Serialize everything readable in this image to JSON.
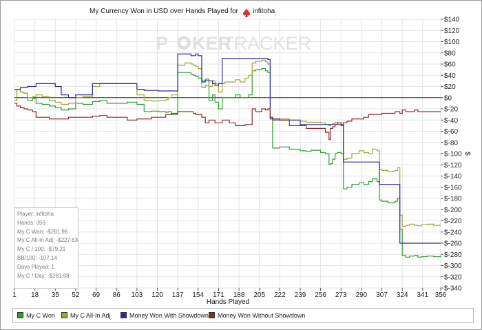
{
  "chart_data": {
    "type": "line",
    "title": "My Currency Won in USD over Hands Played for",
    "player_name": "infitoha",
    "watermark": {
      "left": "P",
      "right": "KER",
      "brand2": "TRACKER"
    },
    "xlabel": "Hands Played",
    "ylabel": "$",
    "xlim": [
      1,
      356
    ],
    "ylim": [
      -340,
      140
    ],
    "x_ticks": [
      "1",
      "18",
      "35",
      "52",
      "69",
      "86",
      "103",
      "120",
      "137",
      "154",
      "171",
      "188",
      "205",
      "222",
      "239",
      "256",
      "273",
      "290",
      "307",
      "324",
      "341",
      "356"
    ],
    "y_ticks": [
      "$140",
      "$120",
      "$100",
      "$80",
      "$60",
      "$40",
      "$20",
      "$0",
      "$-20",
      "$-40",
      "$-60",
      "$-80",
      "$-100",
      "$-120",
      "$-140",
      "$-160",
      "$-180",
      "$-200",
      "$-220",
      "$-240",
      "$-260",
      "$-280",
      "$-300",
      "$-320",
      "$-340"
    ],
    "grid": true,
    "legend_position": "bottom",
    "series": [
      {
        "name": "My C Won",
        "color": "#2e9e2e",
        "x": [
          1,
          3,
          6,
          9,
          12,
          16,
          19,
          24,
          30,
          35,
          40,
          46,
          52,
          58,
          66,
          72,
          78,
          86,
          95,
          103,
          109,
          115,
          121,
          127,
          129,
          132,
          137,
          143,
          148,
          150,
          152,
          154,
          157,
          160,
          163,
          166,
          168,
          171,
          174,
          176,
          180,
          185,
          189,
          193,
          196,
          199,
          202,
          207,
          210,
          212,
          214,
          216,
          222,
          230,
          239,
          244,
          248,
          256,
          260,
          263,
          264,
          266,
          268,
          270,
          273,
          275,
          278,
          282,
          288,
          292,
          296,
          299,
          303,
          305,
          307,
          312,
          318,
          320,
          322,
          324,
          327,
          330,
          334,
          337,
          340,
          345,
          350,
          356
        ],
        "values": [
          -5,
          15,
          10,
          8,
          -5,
          -2,
          -10,
          -12,
          -15,
          -18,
          -22,
          -20,
          -10,
          -12,
          -7,
          -5,
          -10,
          -10,
          -8,
          -12,
          -25,
          -24,
          -25,
          -26,
          -25,
          -30,
          45,
          45,
          42,
          40,
          38,
          35,
          30,
          33,
          -5,
          5,
          -8,
          -20,
          0,
          0,
          0,
          5,
          0,
          0,
          5,
          48,
          50,
          52,
          48,
          45,
          -35,
          -90,
          -88,
          -92,
          -95,
          -96,
          -94,
          -98,
          -100,
          -120,
          -118,
          -110,
          -100,
          -98,
          -100,
          -163,
          -160,
          -155,
          -152,
          -155,
          -150,
          -145,
          -150,
          -183,
          -185,
          -188,
          -185,
          -180,
          -235,
          -282,
          -285,
          -283,
          -282,
          -285,
          -284,
          -283,
          -284,
          -282
        ]
      },
      {
        "name": "My C All-In Adj",
        "color": "#9aaa2e",
        "x": [
          1,
          3,
          6,
          9,
          12,
          16,
          19,
          24,
          30,
          35,
          40,
          46,
          52,
          58,
          66,
          72,
          78,
          86,
          95,
          103,
          109,
          115,
          121,
          127,
          129,
          132,
          137,
          143,
          148,
          150,
          152,
          154,
          157,
          160,
          163,
          166,
          168,
          171,
          174,
          176,
          180,
          185,
          189,
          193,
          196,
          199,
          202,
          207,
          210,
          212,
          214,
          216,
          222,
          230,
          239,
          244,
          248,
          256,
          260,
          263,
          264,
          266,
          268,
          270,
          273,
          275,
          278,
          282,
          288,
          292,
          296,
          299,
          303,
          305,
          307,
          312,
          318,
          320,
          322,
          324,
          327,
          330,
          334,
          337,
          340,
          345,
          350,
          356
        ],
        "values": [
          -5,
          15,
          10,
          8,
          0,
          2,
          5,
          2,
          -5,
          -8,
          -12,
          -10,
          0,
          2,
          20,
          25,
          25,
          25,
          25,
          5,
          -5,
          -6,
          -5,
          -4,
          0,
          5,
          58,
          62,
          60,
          58,
          56,
          52,
          18,
          22,
          20,
          30,
          25,
          10,
          25,
          28,
          28,
          32,
          28,
          35,
          40,
          62,
          65,
          67,
          64,
          60,
          -35,
          -38,
          -38,
          -40,
          -42,
          -44,
          -44,
          -45,
          -48,
          -50,
          -48,
          -46,
          -44,
          -45,
          -45,
          -110,
          -108,
          -100,
          -95,
          -98,
          -100,
          -92,
          -95,
          -128,
          -130,
          -132,
          -130,
          -125,
          -210,
          -230,
          -228,
          -226,
          -228,
          -229,
          -227,
          -226,
          -228,
          -227
        ]
      },
      {
        "name": "Money Won With Showdown",
        "color": "#2a2a9a",
        "x": [
          1,
          3,
          6,
          9,
          12,
          16,
          19,
          24,
          30,
          35,
          40,
          46,
          52,
          58,
          66,
          72,
          78,
          86,
          95,
          103,
          109,
          115,
          121,
          127,
          129,
          132,
          137,
          143,
          148,
          150,
          152,
          154,
          157,
          160,
          163,
          166,
          168,
          171,
          174,
          176,
          180,
          185,
          189,
          193,
          196,
          199,
          202,
          207,
          210,
          212,
          214,
          216,
          222,
          230,
          239,
          244,
          248,
          256,
          260,
          263,
          264,
          266,
          268,
          270,
          273,
          275,
          278,
          282,
          288,
          292,
          296,
          299,
          303,
          305,
          307,
          312,
          318,
          320,
          322,
          324,
          327,
          330,
          334,
          337,
          340,
          345,
          350,
          356
        ],
        "values": [
          15,
          15,
          18,
          18,
          20,
          20,
          25,
          25,
          25,
          20,
          5,
          0,
          5,
          5,
          25,
          25,
          25,
          25,
          25,
          15,
          13,
          13,
          12,
          12,
          12,
          12,
          78,
          78,
          75,
          75,
          78,
          75,
          28,
          30,
          30,
          25,
          22,
          25,
          70,
          70,
          70,
          70,
          70,
          70,
          70,
          70,
          70,
          70,
          70,
          68,
          -38,
          -38,
          -40,
          -40,
          -48,
          -48,
          -48,
          -48,
          -48,
          -48,
          -48,
          -48,
          -48,
          -48,
          -48,
          -115,
          -115,
          -115,
          -115,
          -115,
          -115,
          -115,
          -115,
          -155,
          -155,
          -155,
          -155,
          -155,
          -260,
          -260,
          -260,
          -260,
          -260,
          -260,
          -260,
          -260,
          -260,
          -260
        ]
      },
      {
        "name": "Money Won Without Showdown",
        "color": "#8a2a2a",
        "x": [
          1,
          3,
          6,
          9,
          12,
          16,
          19,
          24,
          30,
          35,
          40,
          46,
          52,
          58,
          66,
          72,
          78,
          86,
          95,
          103,
          109,
          115,
          121,
          127,
          129,
          132,
          137,
          143,
          148,
          150,
          152,
          154,
          157,
          160,
          163,
          166,
          168,
          171,
          174,
          176,
          180,
          185,
          189,
          193,
          196,
          199,
          202,
          207,
          210,
          212,
          214,
          216,
          222,
          230,
          239,
          244,
          248,
          256,
          260,
          263,
          264,
          266,
          268,
          270,
          273,
          275,
          278,
          282,
          288,
          292,
          296,
          299,
          303,
          305,
          307,
          312,
          318,
          320,
          322,
          324,
          327,
          330,
          334,
          337,
          340,
          345,
          350,
          356
        ],
        "values": [
          -10,
          -15,
          -18,
          -20,
          -22,
          -25,
          -35,
          -35,
          -38,
          -38,
          -38,
          -35,
          -35,
          -35,
          -33,
          -32,
          -35,
          -35,
          -40,
          -38,
          -38,
          -35,
          -35,
          -30,
          -30,
          -28,
          -25,
          -25,
          -25,
          -28,
          -30,
          -30,
          -35,
          -45,
          -40,
          -40,
          -45,
          -45,
          -40,
          -40,
          -45,
          -50,
          -50,
          -48,
          -48,
          -20,
          -25,
          -20,
          -22,
          -20,
          -35,
          -40,
          -40,
          -50,
          -50,
          -55,
          -55,
          -55,
          -62,
          -75,
          -55,
          -52,
          -48,
          -45,
          -50,
          -45,
          -42,
          -38,
          -38,
          -35,
          -30,
          -30,
          -30,
          -30,
          -28,
          -28,
          -25,
          -25,
          -28,
          -22,
          -25,
          -25,
          -22,
          -25,
          -25,
          -25,
          -25,
          -25
        ]
      }
    ]
  },
  "stats": [
    "Player: infitoha",
    "Hands: 356",
    "My C Won: -$281.98",
    "My C All-In Adj: -$227.63",
    "My C / 100: -$79.21",
    "BB/100: -107.14",
    "Days Played: 1",
    "My C / Day: -$281.98"
  ]
}
